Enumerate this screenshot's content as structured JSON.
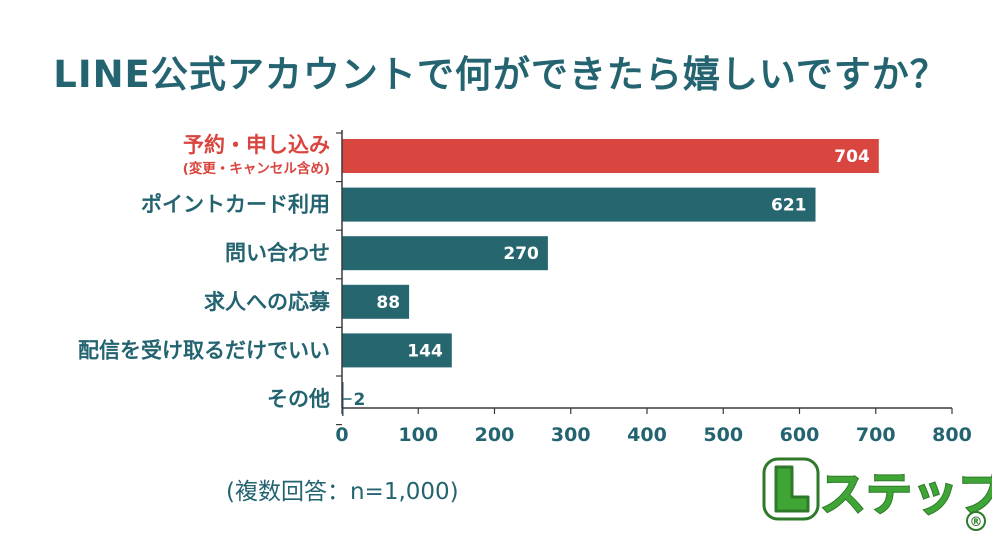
{
  "chart_data": {
    "type": "bar",
    "orientation": "horizontal",
    "title": "LINE公式アカウントで何ができたら嬉しいですか？",
    "categories": [
      "予約・申し込み",
      "ポイントカード利用",
      "問い合わせ",
      "求人への応募",
      "配信を受け取るだけでいい",
      "その他"
    ],
    "category_sublabels": [
      "(変更・キャンセル含め)",
      "",
      "",
      "",
      "",
      ""
    ],
    "values": [
      704,
      621,
      270,
      88,
      144,
      2
    ],
    "highlight_index": 0,
    "xlim": [
      0,
      800
    ],
    "xticks": [
      0,
      100,
      200,
      300,
      400,
      500,
      600,
      700,
      800
    ],
    "grid": false,
    "colors": {
      "bar": "#26666f",
      "highlight": "#d9453f",
      "text": "#246470"
    }
  },
  "note": "(複数回答：n=1,000)",
  "brand": {
    "text": "Lステップ",
    "mark": "®"
  }
}
